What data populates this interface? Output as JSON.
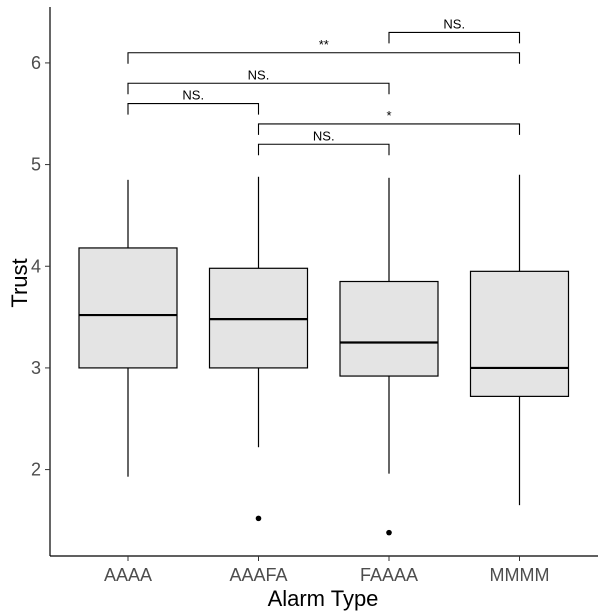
{
  "chart_data": {
    "type": "boxplot",
    "xlabel": "Alarm Type",
    "ylabel": "Trust",
    "ylim": [
      1.15,
      6.55
    ],
    "yticks": [
      2,
      3,
      4,
      5,
      6
    ],
    "categories": [
      "AAAA",
      "AAAFA",
      "FAAAA",
      "MMMM"
    ],
    "boxes": [
      {
        "category": "AAAA",
        "whisker_low": 1.93,
        "q1": 3.0,
        "median": 3.52,
        "q3": 4.18,
        "whisker_high": 4.85,
        "outliers": []
      },
      {
        "category": "AAAFA",
        "whisker_low": 2.22,
        "q1": 3.0,
        "median": 3.48,
        "q3": 3.98,
        "whisker_high": 4.88,
        "outliers": [
          1.52
        ]
      },
      {
        "category": "FAAAA",
        "whisker_low": 1.96,
        "q1": 2.92,
        "median": 3.25,
        "q3": 3.85,
        "whisker_high": 4.87,
        "outliers": [
          1.38
        ]
      },
      {
        "category": "MMMM",
        "whisker_low": 1.65,
        "q1": 2.72,
        "median": 3.0,
        "q3": 3.95,
        "whisker_high": 4.9,
        "outliers": []
      }
    ],
    "comparisons": [
      {
        "from": "AAAA",
        "to": "AAAFA",
        "y": 5.6,
        "label": "NS."
      },
      {
        "from": "AAAA",
        "to": "FAAAA",
        "y": 5.8,
        "label": "NS."
      },
      {
        "from": "AAAA",
        "to": "MMMM",
        "y": 6.1,
        "label": "**"
      },
      {
        "from": "AAAFA",
        "to": "FAAAA",
        "y": 5.2,
        "label": "NS."
      },
      {
        "from": "AAAFA",
        "to": "MMMM",
        "y": 5.4,
        "label": "*"
      },
      {
        "from": "FAAAA",
        "to": "MMMM",
        "y": 6.3,
        "label": "NS."
      }
    ],
    "grid": false,
    "legend": "none",
    "colors": {
      "box_fill": "#e4e4e4",
      "stroke": "#000000"
    }
  }
}
